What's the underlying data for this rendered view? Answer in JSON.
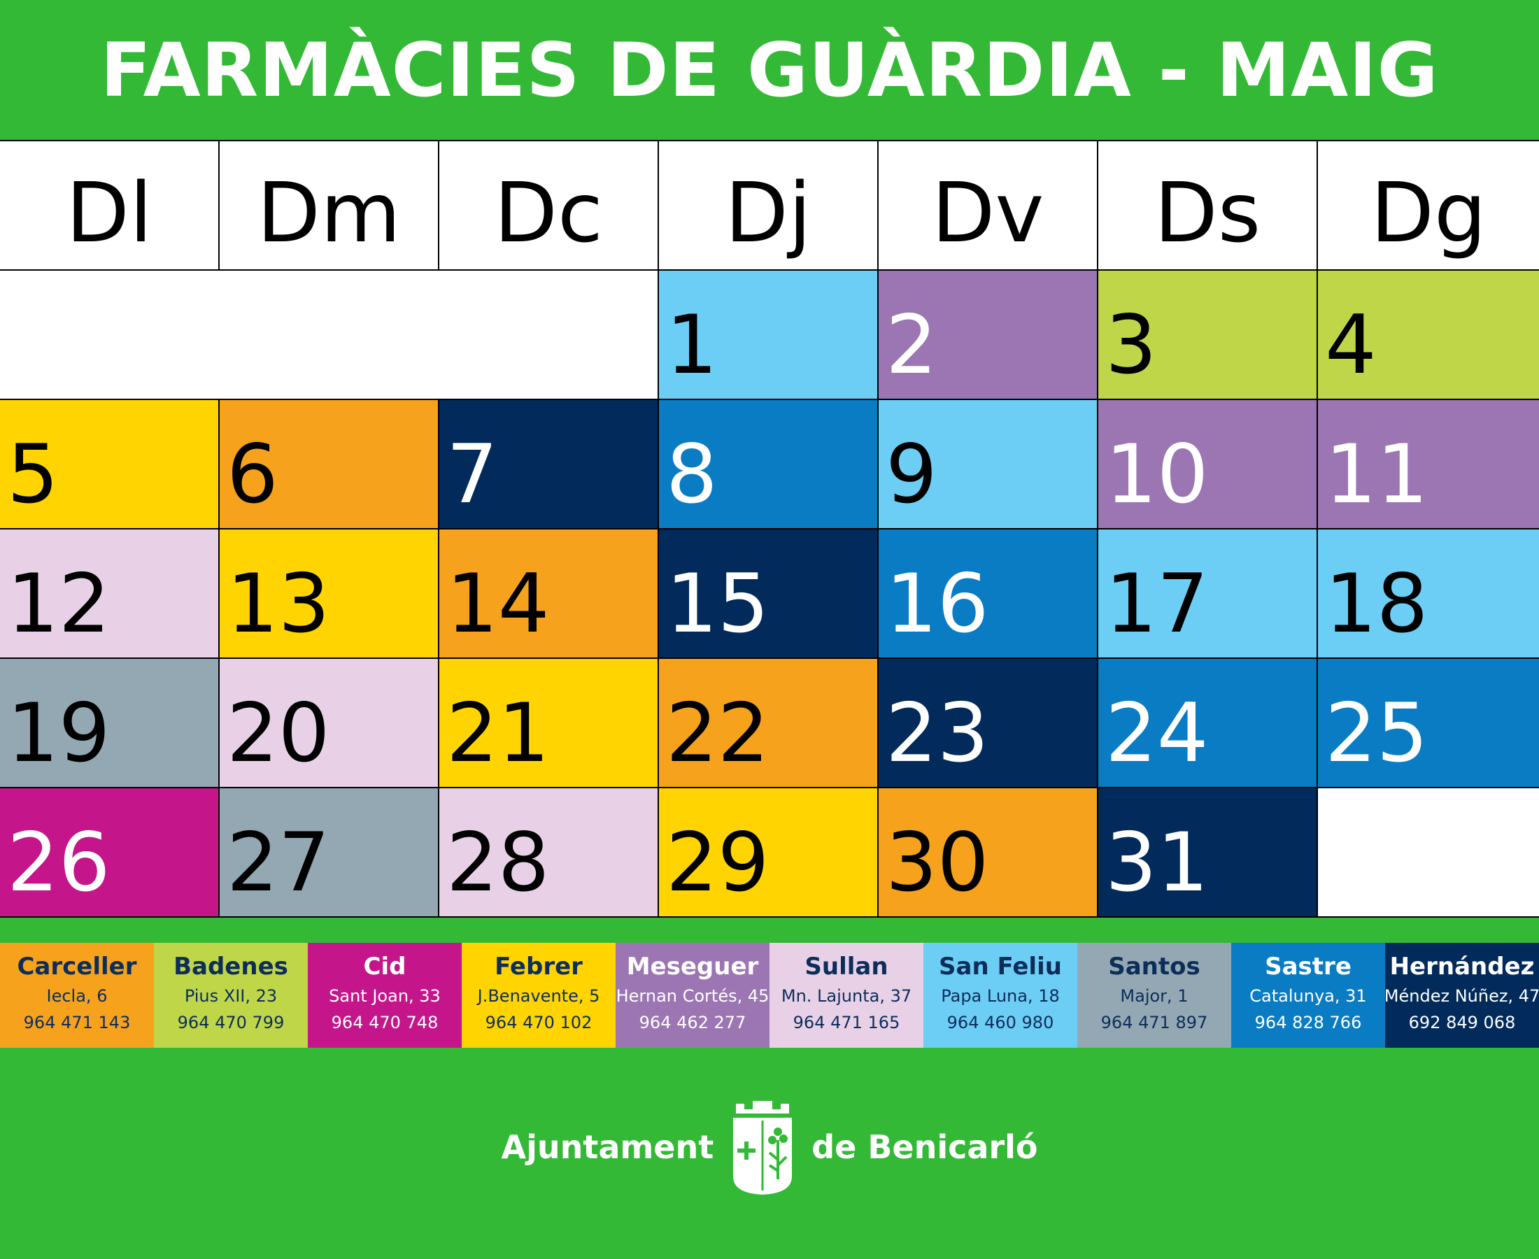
{
  "title": "FARMÀCIES DE GUÀRDIA - MAIG",
  "days_of_week": [
    "Dl",
    "Dm",
    "Dc",
    "Dj",
    "Dv",
    "Ds",
    "Dg"
  ],
  "colors": {
    "orange": "#f6a21d",
    "lime": "#bed648",
    "magenta": "#c4168a",
    "yellow": "#ffd400",
    "purple": "#9b76b3",
    "pink": "#e8d1e6",
    "skyblue": "#6dcef5",
    "gray": "#93a8b2",
    "blue": "#0a7cc4",
    "navy": "#022b5b",
    "green": "#33b935"
  },
  "days": [
    {
      "num": "1",
      "pharmacy": "San Feliu"
    },
    {
      "num": "2",
      "pharmacy": "Meseguer"
    },
    {
      "num": "3",
      "pharmacy": "Badenes"
    },
    {
      "num": "4",
      "pharmacy": "Badenes"
    },
    {
      "num": "5",
      "pharmacy": "Febrer"
    },
    {
      "num": "6",
      "pharmacy": "Carceller"
    },
    {
      "num": "7",
      "pharmacy": "Hernández"
    },
    {
      "num": "8",
      "pharmacy": "Sastre"
    },
    {
      "num": "9",
      "pharmacy": "San Feliu"
    },
    {
      "num": "10",
      "pharmacy": "Meseguer"
    },
    {
      "num": "11",
      "pharmacy": "Meseguer"
    },
    {
      "num": "12",
      "pharmacy": "Sullan"
    },
    {
      "num": "13",
      "pharmacy": "Febrer"
    },
    {
      "num": "14",
      "pharmacy": "Carceller"
    },
    {
      "num": "15",
      "pharmacy": "Hernández"
    },
    {
      "num": "16",
      "pharmacy": "Sastre"
    },
    {
      "num": "17",
      "pharmacy": "San Feliu"
    },
    {
      "num": "18",
      "pharmacy": "San Feliu"
    },
    {
      "num": "19",
      "pharmacy": "Santos"
    },
    {
      "num": "20",
      "pharmacy": "Sullan"
    },
    {
      "num": "21",
      "pharmacy": "Febrer"
    },
    {
      "num": "22",
      "pharmacy": "Carceller"
    },
    {
      "num": "23",
      "pharmacy": "Hernández"
    },
    {
      "num": "24",
      "pharmacy": "Sastre"
    },
    {
      "num": "25",
      "pharmacy": "Sastre"
    },
    {
      "num": "26",
      "pharmacy": "Cid"
    },
    {
      "num": "27",
      "pharmacy": "Santos"
    },
    {
      "num": "28",
      "pharmacy": "Sullan"
    },
    {
      "num": "29",
      "pharmacy": "Febrer"
    },
    {
      "num": "30",
      "pharmacy": "Carceller"
    },
    {
      "num": "31",
      "pharmacy": "Hernández"
    }
  ],
  "pharmacies": [
    {
      "name": "Carceller",
      "address": "Iecla, 6",
      "phone": "964 471 143",
      "color": "#f6a21d",
      "name_color": "#0d2d5a",
      "text_color": "#0d2d5a"
    },
    {
      "name": "Badenes",
      "address": "Pius XII, 23",
      "phone": "964 470 799",
      "color": "#bed648",
      "name_color": "#0d2d5a",
      "text_color": "#0d2d5a"
    },
    {
      "name": "Cid",
      "address": "Sant Joan, 33",
      "phone": "964 470 748",
      "color": "#c4168a",
      "name_color": "#ffffff",
      "text_color": "#ffffff"
    },
    {
      "name": "Febrer",
      "address": "J.Benavente, 5",
      "phone": "964 470 102",
      "color": "#ffd400",
      "name_color": "#0d2d5a",
      "text_color": "#0d2d5a"
    },
    {
      "name": "Meseguer",
      "address": "Hernan Cortés, 45",
      "phone": "964 462 277",
      "color": "#9b76b3",
      "name_color": "#ffffff",
      "text_color": "#ffffff"
    },
    {
      "name": "Sullan",
      "address": "Mn. Lajunta, 37",
      "phone": "964 471 165",
      "color": "#e8d1e6",
      "name_color": "#0d2d5a",
      "text_color": "#0d2d5a"
    },
    {
      "name": "San Feliu",
      "address": "Papa Luna, 18",
      "phone": "964 460 980",
      "color": "#6dcef5",
      "name_color": "#0d2d5a",
      "text_color": "#0d2d5a"
    },
    {
      "name": "Santos",
      "address": "Major, 1",
      "phone": "964 471 897",
      "color": "#93a8b2",
      "name_color": "#0d2d5a",
      "text_color": "#0d2d5a"
    },
    {
      "name": "Sastre",
      "address": "Catalunya, 31",
      "phone": "964 828 766",
      "color": "#0a7cc4",
      "name_color": "#ffffff",
      "text_color": "#ffffff"
    },
    {
      "name": "Hernández",
      "address": "Méndez Núñez, 47",
      "phone": "692 849 068",
      "color": "#022b5b",
      "name_color": "#ffffff",
      "text_color": "#ffffff"
    }
  ],
  "footer": {
    "left_text": "Ajuntament",
    "right_text": "de Benicarló"
  }
}
